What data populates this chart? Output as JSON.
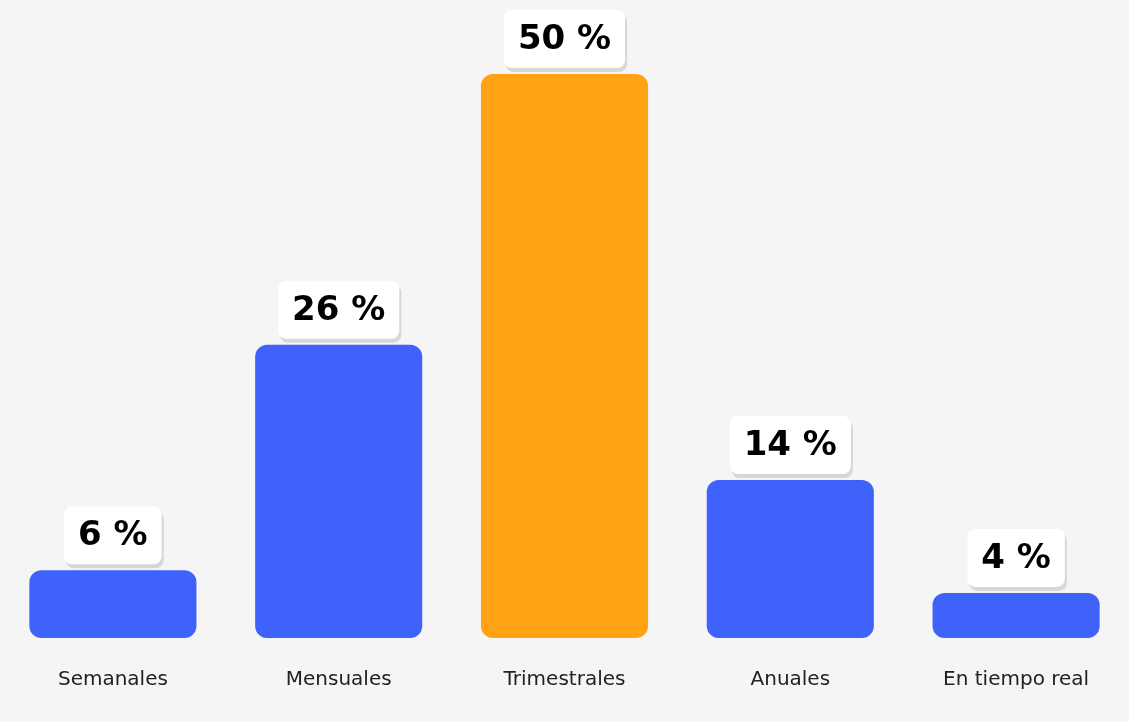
{
  "chart_data": {
    "type": "bar",
    "categories": [
      "Semanales",
      "Mensuales",
      "Trimestrales",
      "Anuales",
      "En tiempo real"
    ],
    "values": [
      6,
      26,
      50,
      14,
      4
    ],
    "colors": [
      "#3f62fa",
      "#3f62fa",
      "#ffa314",
      "#3f62fa",
      "#3f62fa"
    ],
    "value_labels": [
      "6 %",
      "26 %",
      "50 %",
      "14 %",
      "4 %"
    ],
    "grid": false,
    "legend": false
  }
}
